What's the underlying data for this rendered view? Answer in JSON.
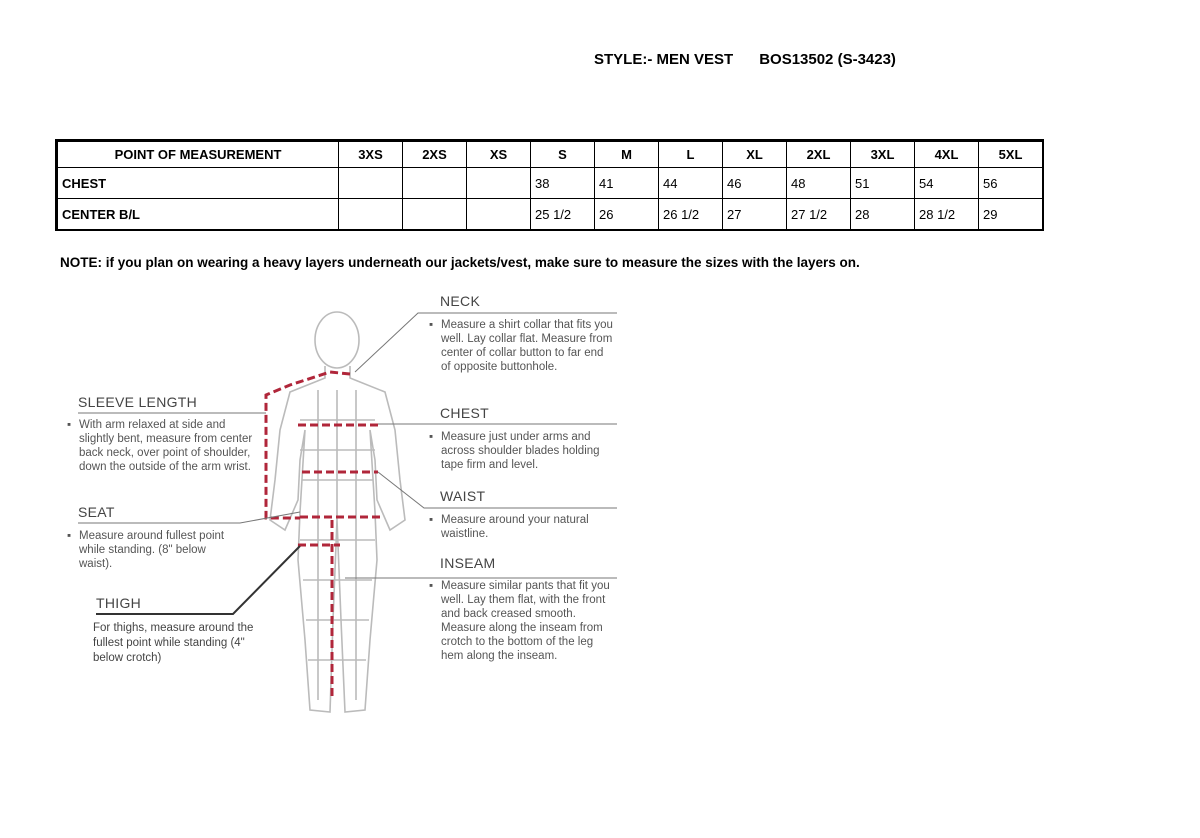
{
  "header": {
    "style_label": "STYLE:- MEN VEST",
    "style_code": "BOS13502 (S-3423)"
  },
  "table": {
    "headers": [
      "POINT OF MEASUREMENT",
      "3XS",
      "2XS",
      "XS",
      "S",
      "M",
      "L",
      "XL",
      "2XL",
      "3XL",
      "4XL",
      "5XL"
    ],
    "rows": [
      {
        "label": "CHEST",
        "values": [
          "",
          "",
          "",
          "38",
          "41",
          "44",
          "46",
          "48",
          "51",
          "54",
          "56"
        ]
      },
      {
        "label": "CENTER B/L",
        "values": [
          "",
          "",
          "",
          "25 1/2",
          "26",
          "26 1/2",
          "27",
          "27 1/2",
          "28",
          "28 1/2",
          "29"
        ]
      }
    ]
  },
  "note": "NOTE: if you plan on wearing a heavy layers underneath our jackets/vest, make sure to measure the sizes with the layers on.",
  "guide": {
    "neck": {
      "title": "NECK",
      "text": "Measure a shirt collar that fits you well. Lay collar flat. Measure from center of collar button to far end of opposite buttonhole."
    },
    "sleeve": {
      "title": "SLEEVE LENGTH",
      "text": "With arm relaxed at side and slightly bent, measure from center back neck, over point of shoulder, down the outside of the arm wrist."
    },
    "chest": {
      "title": "CHEST",
      "text": "Measure just under arms and across shoulder blades holding tape firm and level."
    },
    "waist": {
      "title": "WAIST",
      "text": "Measure around your natural waistline."
    },
    "seat": {
      "title": "SEAT",
      "text": "Measure around fullest point while standing. (8\" below waist)."
    },
    "inseam": {
      "title": "INSEAM",
      "text": "Measure similar pants that fit you well. Lay them flat, with the front and back creased smooth. Measure along the inseam from crotch to the bottom of the leg hem along the inseam."
    },
    "thigh": {
      "title": "THIGH",
      "text": "For thighs, measure around the fullest point while standing (4\" below crotch)"
    }
  },
  "colors": {
    "measure_line": "#b0263a"
  }
}
